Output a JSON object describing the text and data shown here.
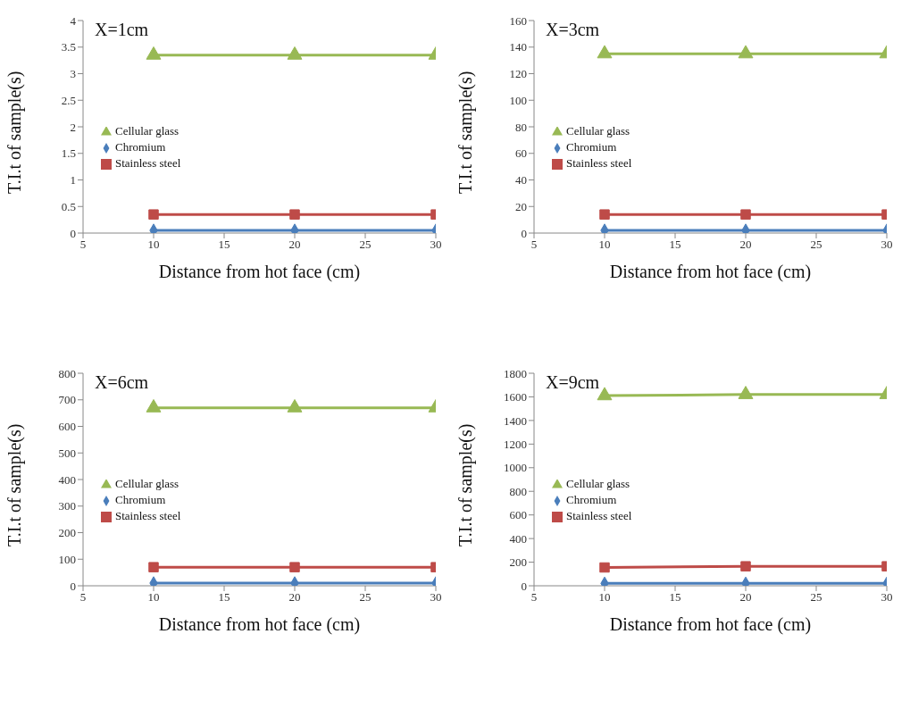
{
  "chart_data": [
    {
      "type": "line",
      "title": "X=1cm",
      "xlabel": "Distance from hot face (cm)",
      "ylabel": "T.I.t of sample(s)",
      "x": [
        10,
        20,
        30
      ],
      "xlim": [
        5,
        30
      ],
      "xticks": [
        5,
        10,
        15,
        20,
        25,
        30
      ],
      "ylim": [
        0,
        4
      ],
      "yticks": [
        0,
        0.5,
        1,
        1.5,
        2,
        2.5,
        3,
        3.5,
        4
      ],
      "grid": false,
      "legend": "left",
      "series": [
        {
          "name": "Chromium",
          "color": "#4a7ebb",
          "marker": "diamond",
          "values": [
            0.05,
            0.05,
            0.05
          ]
        },
        {
          "name": "Stainless steel",
          "color": "#be4b48",
          "marker": "square",
          "values": [
            0.35,
            0.35,
            0.35
          ]
        },
        {
          "name": "Cellular glass",
          "color": "#98b954",
          "marker": "triangle",
          "values": [
            3.35,
            3.35,
            3.35
          ]
        }
      ]
    },
    {
      "type": "line",
      "title": "X=3cm",
      "xlabel": "Distance from hot face (cm)",
      "ylabel": "T.I.t of sample(s)",
      "x": [
        10,
        20,
        30
      ],
      "xlim": [
        5,
        30
      ],
      "xticks": [
        5,
        10,
        15,
        20,
        25,
        30
      ],
      "ylim": [
        0,
        160
      ],
      "yticks": [
        0,
        20,
        40,
        60,
        80,
        100,
        120,
        140,
        160
      ],
      "grid": false,
      "legend": "left",
      "series": [
        {
          "name": "Chromium",
          "color": "#4a7ebb",
          "marker": "diamond",
          "values": [
            2,
            2,
            2
          ]
        },
        {
          "name": "Stainless steel",
          "color": "#be4b48",
          "marker": "square",
          "values": [
            14,
            14,
            14
          ]
        },
        {
          "name": "Cellular glass",
          "color": "#98b954",
          "marker": "triangle",
          "values": [
            135,
            135,
            135
          ]
        }
      ]
    },
    {
      "type": "line",
      "title": "X=6cm",
      "xlabel": "Distance from hot face (cm)",
      "ylabel": "T.I.t of sample(s)",
      "x": [
        10,
        20,
        30
      ],
      "xlim": [
        5,
        30
      ],
      "xticks": [
        5,
        10,
        15,
        20,
        25,
        30
      ],
      "ylim": [
        0,
        800
      ],
      "yticks": [
        0,
        100,
        200,
        300,
        400,
        500,
        600,
        700,
        800
      ],
      "grid": false,
      "legend": "left",
      "series": [
        {
          "name": "Chromium",
          "color": "#4a7ebb",
          "marker": "diamond",
          "values": [
            10,
            10,
            10
          ]
        },
        {
          "name": "Stainless steel",
          "color": "#be4b48",
          "marker": "square",
          "values": [
            70,
            70,
            70
          ]
        },
        {
          "name": "Cellular glass",
          "color": "#98b954",
          "marker": "triangle",
          "values": [
            670,
            670,
            670
          ]
        }
      ]
    },
    {
      "type": "line",
      "title": "X=9cm",
      "xlabel": "Distance from hot face (cm)",
      "ylabel": "T.I.t of sample(s)",
      "x": [
        10,
        20,
        30
      ],
      "xlim": [
        5,
        30
      ],
      "xticks": [
        5,
        10,
        15,
        20,
        25,
        30
      ],
      "ylim": [
        0,
        1800
      ],
      "yticks": [
        0,
        200,
        400,
        600,
        800,
        1000,
        1200,
        1400,
        1600,
        1800
      ],
      "grid": false,
      "legend": "left",
      "series": [
        {
          "name": "Chromium",
          "color": "#4a7ebb",
          "marker": "diamond",
          "values": [
            20,
            20,
            20
          ]
        },
        {
          "name": "Stainless steel",
          "color": "#be4b48",
          "marker": "square",
          "values": [
            155,
            165,
            165
          ]
        },
        {
          "name": "Cellular glass",
          "color": "#98b954",
          "marker": "triangle",
          "values": [
            1610,
            1620,
            1620
          ]
        }
      ]
    }
  ]
}
